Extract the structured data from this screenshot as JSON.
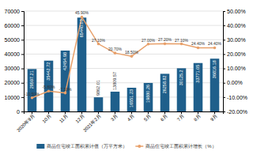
{
  "chart_data": {
    "type": "bar",
    "categories": [
      "2020年9月",
      "10月",
      "11月",
      "12月",
      "2021年2月",
      "3月",
      "4月",
      "5月",
      "6月",
      "7月",
      "8月",
      "9月"
    ],
    "series": [
      {
        "name": "商品住宅竣工面积累计值（万平方米）",
        "type": "bar",
        "color": "#1f5f8b",
        "values": [
          29597.21,
          35442.72,
          42454.98,
          65440.03,
          9862.01,
          13809.57,
          16551.23,
          19880.26,
          26258.82,
          30125.2,
          33771.05,
          36816.18
        ]
      },
      {
        "name": "商品住宅竣工面积累计增长（%）",
        "type": "line",
        "axis": "y2",
        "color": "#e8a06a",
        "marker": "circle",
        "values": [
          -10.5,
          -5.8,
          -7.1,
          45.9,
          27.1,
          20.7,
          18.5,
          27.0,
          27.2,
          27.1,
          24.4,
          24.4
        ],
        "value_labels": [
          "-10.50%",
          "-5.80%",
          "-7.10%",
          "45.90%",
          "27.10%",
          "20.70%",
          "18.50%",
          "27.00%",
          "27.20%",
          "27.10%",
          "24.40%",
          "24.40%"
        ]
      }
    ],
    "ylim": [
      0,
      70000
    ],
    "yticks": [
      0,
      10000,
      20000,
      30000,
      40000,
      50000,
      60000,
      70000
    ],
    "y2lim": [
      -20,
      50
    ],
    "y2ticks": [
      {
        "value": -20,
        "label": "-20.00%"
      },
      {
        "value": -10,
        "label": "-10.00%"
      },
      {
        "value": 0,
        "label": "0.00%"
      },
      {
        "value": 10,
        "label": "10.00%"
      },
      {
        "value": 20,
        "label": "20.00%"
      },
      {
        "value": 30,
        "label": "30.00%"
      },
      {
        "value": 40,
        "label": "40.00%"
      },
      {
        "value": 50,
        "label": "50.00%"
      }
    ],
    "grid": true,
    "legend": "bottom",
    "data_labels": true
  }
}
